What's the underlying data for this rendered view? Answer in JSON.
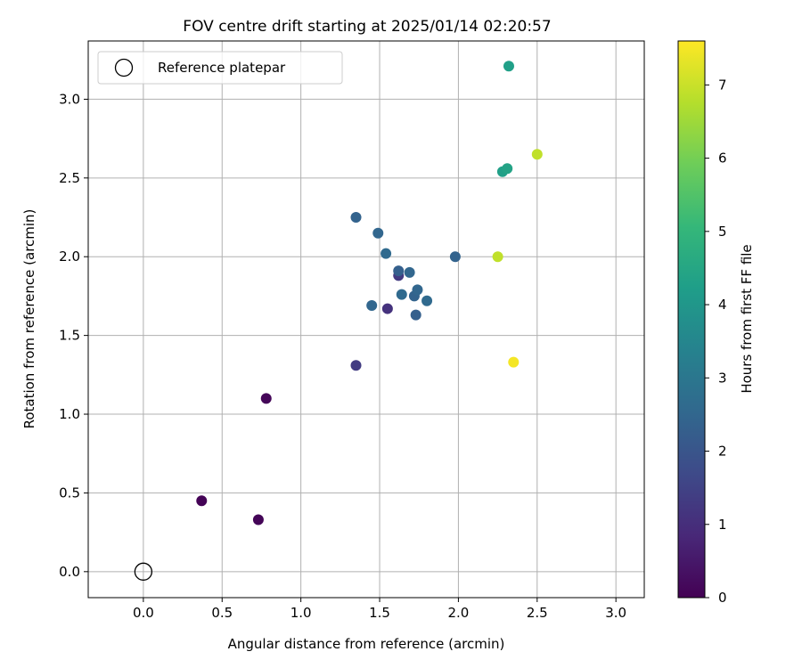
{
  "chart_data": {
    "type": "scatter",
    "title": "FOV centre drift starting at 2025/01/14 02:20:57",
    "xlabel": "Angular distance from reference (arcmin)",
    "ylabel": "Rotation from reference (arcmin)",
    "xlim": [
      -0.35,
      3.18
    ],
    "ylim": [
      -0.165,
      3.37
    ],
    "xticks": [
      0.0,
      0.5,
      1.0,
      1.5,
      2.0,
      2.5,
      3.0
    ],
    "yticks": [
      0.0,
      0.5,
      1.0,
      1.5,
      2.0,
      2.5,
      3.0
    ],
    "xtick_labels": [
      "0.0",
      "0.5",
      "1.0",
      "1.5",
      "2.0",
      "2.5",
      "3.0"
    ],
    "ytick_labels": [
      "0.0",
      "0.5",
      "1.0",
      "1.5",
      "2.0",
      "2.5",
      "3.0"
    ],
    "grid": true,
    "legend": {
      "placement": "top-left",
      "entries": [
        "Reference platepar"
      ]
    },
    "reference_point": {
      "x": 0.0,
      "y": 0.0,
      "name": "Reference platepar"
    },
    "colorbar": {
      "label": "Hours from first FF file",
      "colormap": "viridis",
      "range": [
        0,
        7.6
      ],
      "ticks": [
        0,
        1,
        2,
        3,
        4,
        5,
        6,
        7
      ],
      "tick_labels": [
        "0",
        "1",
        "2",
        "3",
        "4",
        "5",
        "6",
        "7"
      ]
    },
    "points": [
      {
        "x": 0.37,
        "y": 0.45,
        "c": 0.05
      },
      {
        "x": 0.73,
        "y": 0.33,
        "c": 0.08
      },
      {
        "x": 0.78,
        "y": 1.1,
        "c": 0.12
      },
      {
        "x": 1.35,
        "y": 1.31,
        "c": 1.35
      },
      {
        "x": 1.55,
        "y": 1.67,
        "c": 1.1
      },
      {
        "x": 1.62,
        "y": 1.88,
        "c": 1.3
      },
      {
        "x": 1.35,
        "y": 2.25,
        "c": 2.4
      },
      {
        "x": 1.49,
        "y": 2.15,
        "c": 2.5
      },
      {
        "x": 1.54,
        "y": 2.02,
        "c": 2.6
      },
      {
        "x": 1.62,
        "y": 1.91,
        "c": 2.3
      },
      {
        "x": 1.69,
        "y": 1.9,
        "c": 2.5
      },
      {
        "x": 1.45,
        "y": 1.69,
        "c": 2.5
      },
      {
        "x": 1.64,
        "y": 1.76,
        "c": 2.6
      },
      {
        "x": 1.72,
        "y": 1.75,
        "c": 2.4
      },
      {
        "x": 1.74,
        "y": 1.79,
        "c": 2.5
      },
      {
        "x": 1.73,
        "y": 1.63,
        "c": 2.3
      },
      {
        "x": 1.8,
        "y": 1.72,
        "c": 2.6
      },
      {
        "x": 1.98,
        "y": 2.0,
        "c": 2.4
      },
      {
        "x": 2.32,
        "y": 3.21,
        "c": 4.3
      },
      {
        "x": 2.28,
        "y": 2.54,
        "c": 4.3
      },
      {
        "x": 2.31,
        "y": 2.56,
        "c": 4.4
      },
      {
        "x": 2.5,
        "y": 2.65,
        "c": 6.9
      },
      {
        "x": 2.25,
        "y": 2.0,
        "c": 6.9
      },
      {
        "x": 2.35,
        "y": 1.33,
        "c": 7.5
      }
    ]
  }
}
